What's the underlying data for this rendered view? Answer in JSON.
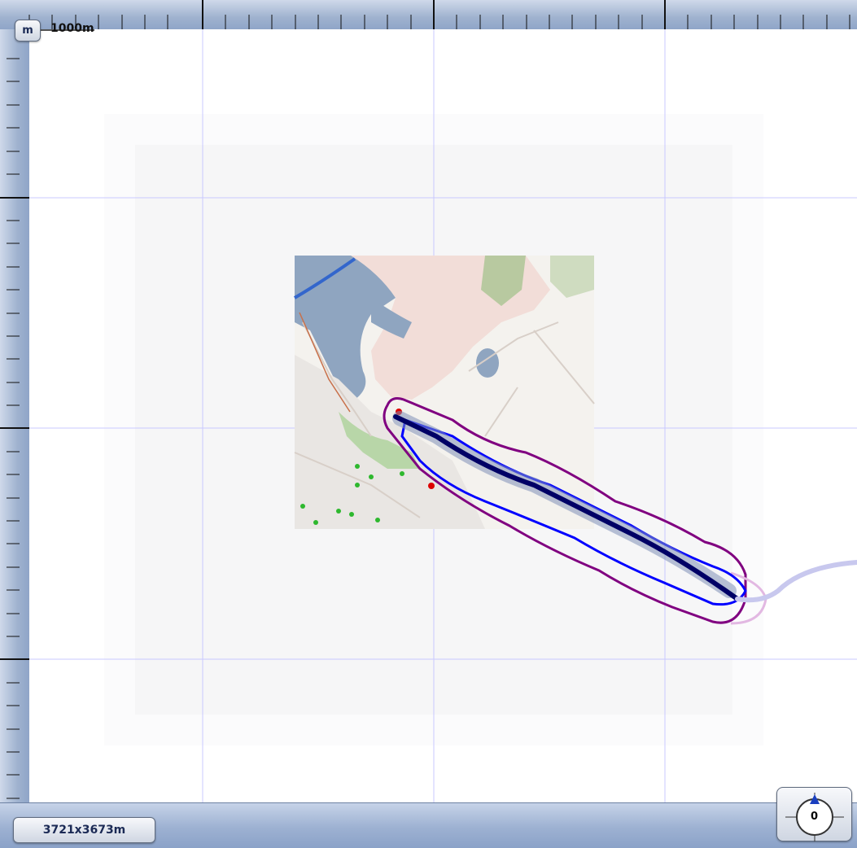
{
  "toolbar": {
    "unit_label": "m",
    "scale_label": "1000m"
  },
  "status": {
    "extent_label": "3721x3673m"
  },
  "compass": {
    "heading": "0"
  },
  "icons": [
    "compass-icon",
    "north-arrow-icon"
  ],
  "colors": {
    "ruler": "#9fb2cf",
    "grid": "#c8c8ff",
    "track_core": "#000066",
    "track_band": "#0000ff",
    "track_outer": "#800080",
    "map_land": "#f2ddd8",
    "map_water": "#8fa5c0",
    "map_park": "#b8c9a0"
  }
}
